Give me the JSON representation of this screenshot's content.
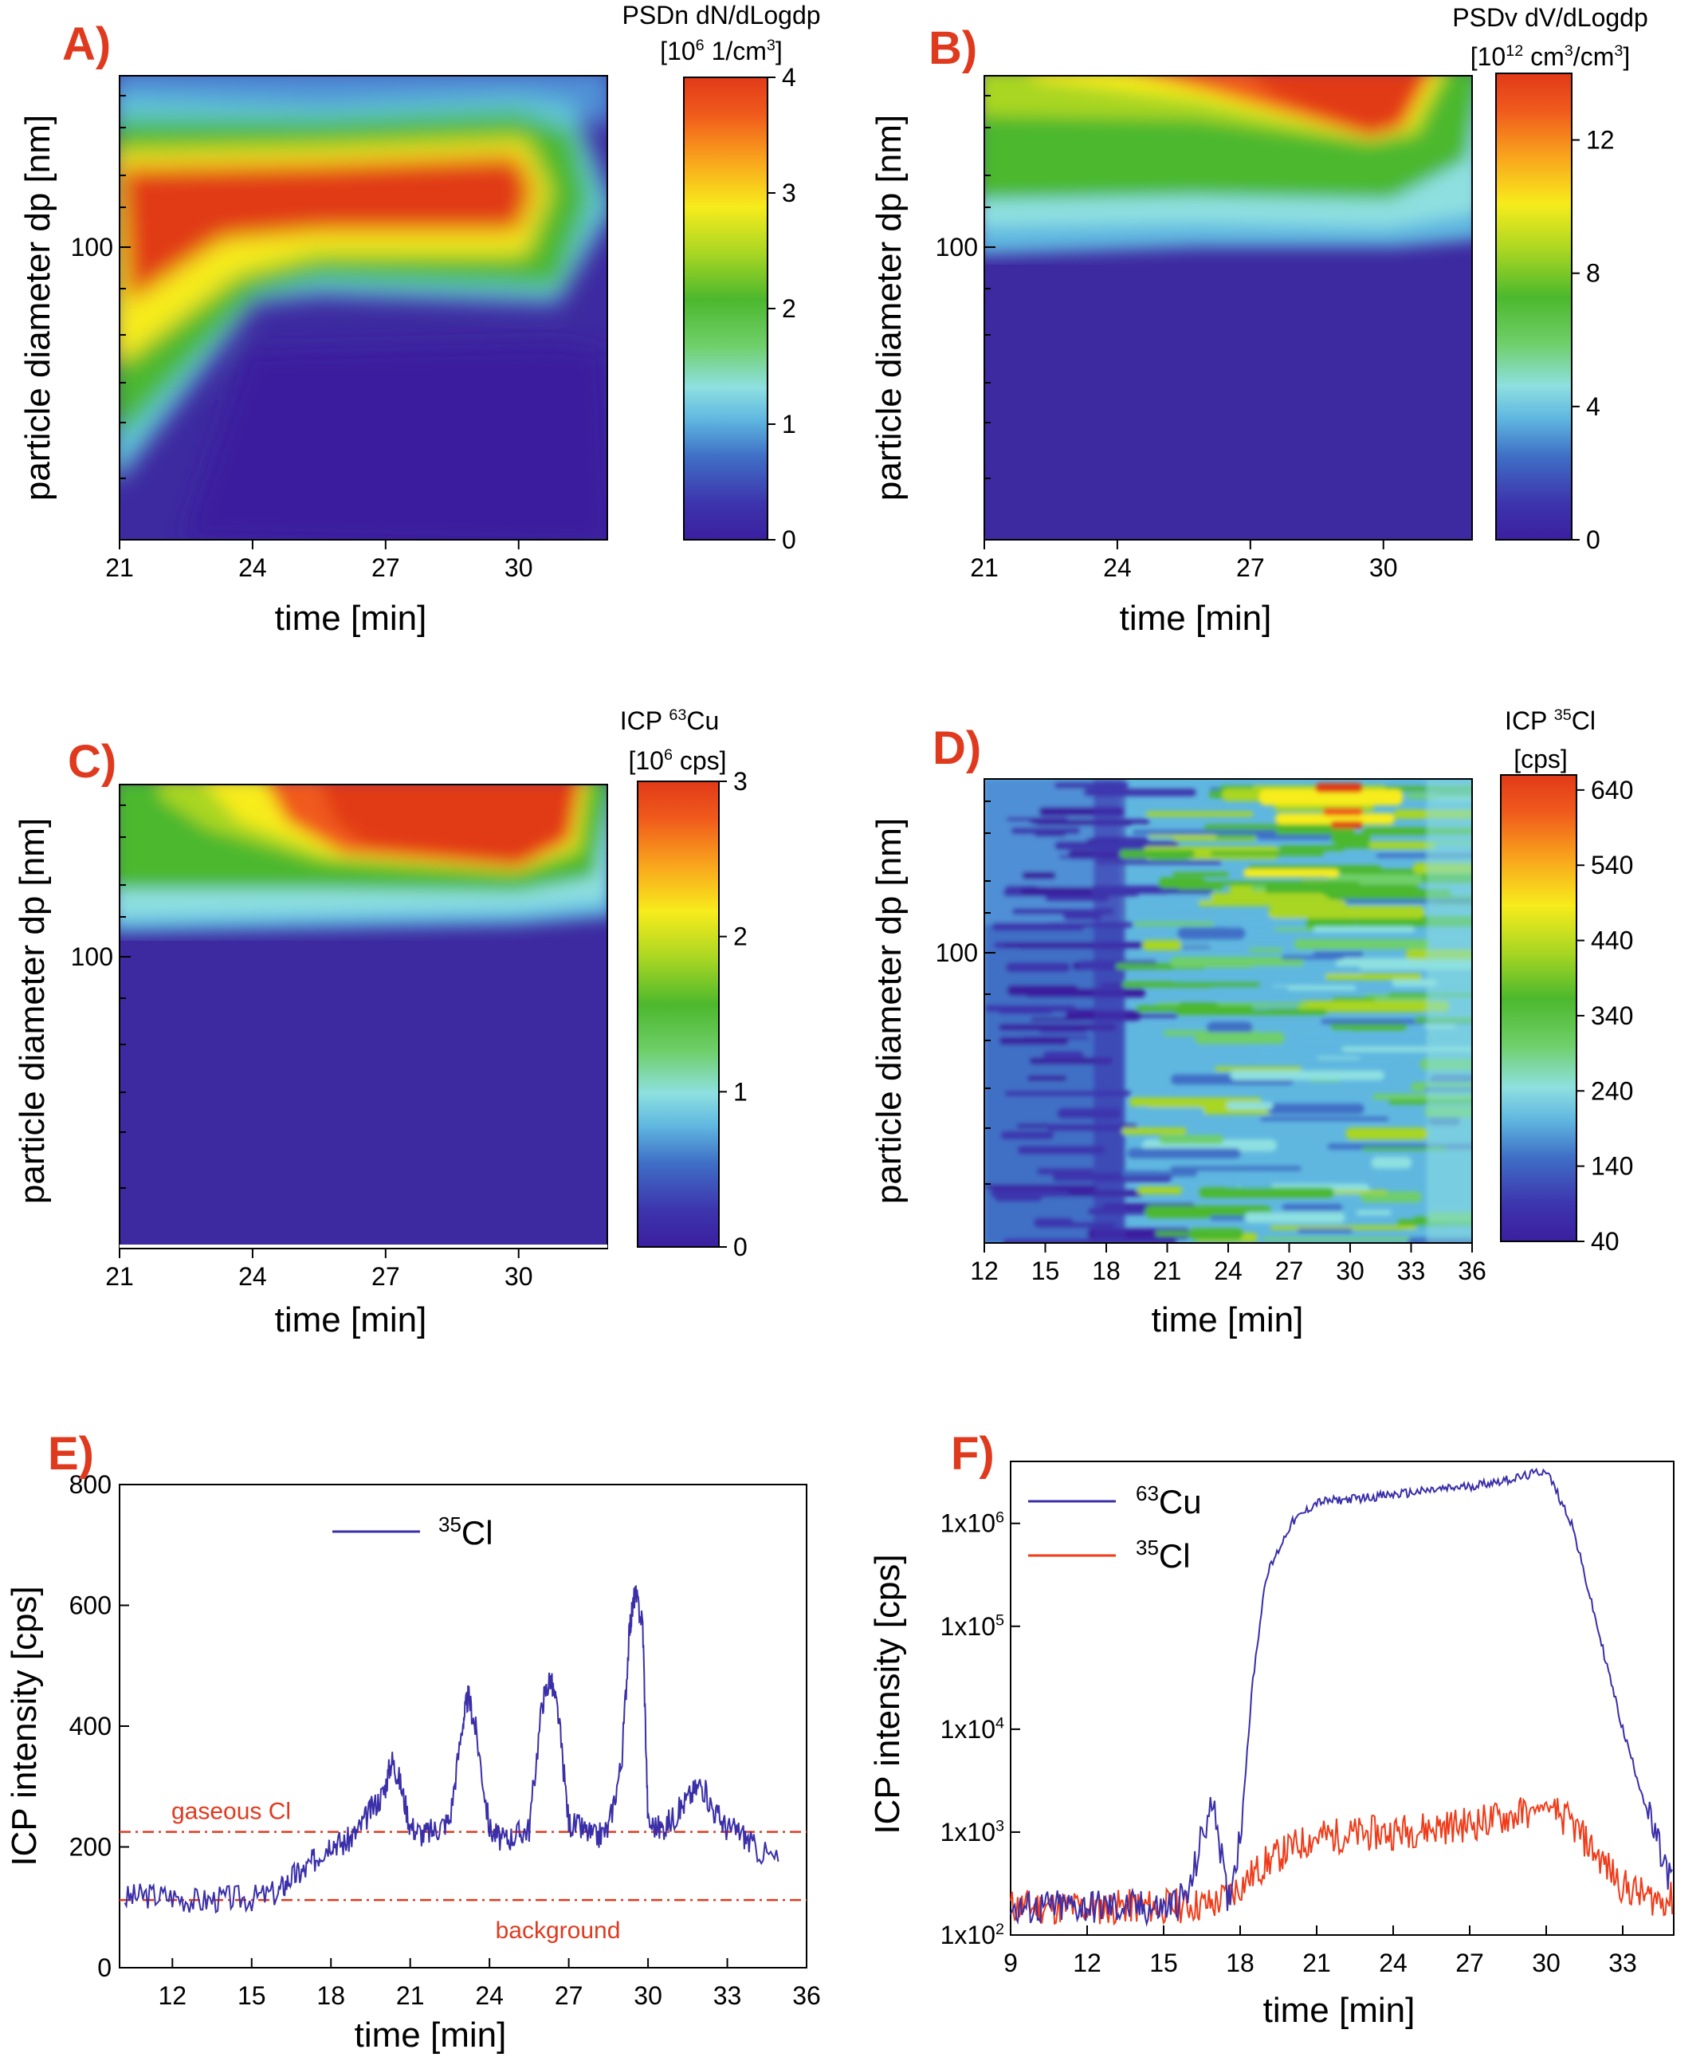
{
  "colors": {
    "panel_label": "#e03a1e",
    "colormap": [
      "#3b1f9e",
      "#3d35ad",
      "#3f6fc6",
      "#5fb7e0",
      "#8ee0e0",
      "#6fcf6a",
      "#4cb82d",
      "#a9d623",
      "#f7ec1c",
      "#f9a51d",
      "#f05a1c",
      "#e13a19"
    ],
    "cu_line": "#3a2fa8",
    "cl_line": "#f03c1a"
  },
  "chart_data": [
    {
      "panel": "A)",
      "type": "heatmap",
      "title": "",
      "xlabel": "time [min]",
      "ylabel": "particle diameter dp [nm]",
      "x_ticks": [
        "21",
        "24",
        "27",
        "30"
      ],
      "xlim": [
        21,
        32
      ],
      "y_ticks": [
        "100"
      ],
      "y_scale": "log",
      "colorbar": {
        "title_line1": "PSDn dN/dLogdp",
        "title_line2": "[10<sup>6</sup> 1/cm<sup>3</sup>]",
        "ticks": [
          "0",
          "1",
          "2",
          "3",
          "4"
        ],
        "range": [
          0,
          4
        ]
      }
    },
    {
      "panel": "B)",
      "type": "heatmap",
      "title": "",
      "xlabel": "time [min]",
      "ylabel": "particle diameter dp [nm]",
      "x_ticks": [
        "21",
        "24",
        "27",
        "30"
      ],
      "xlim": [
        21,
        32
      ],
      "y_ticks": [
        "100"
      ],
      "y_scale": "log",
      "colorbar": {
        "title_line1": "PSDv dV/dLogdp",
        "title_line2": "[10<sup>12</sup> cm<sup>3</sup>/cm<sup>3</sup>]",
        "ticks": [
          "0",
          "4",
          "8",
          "12"
        ],
        "range": [
          0,
          14
        ]
      }
    },
    {
      "panel": "C)",
      "type": "heatmap",
      "title": "",
      "xlabel": "time [min]",
      "ylabel": "particle diameter dp [nm]",
      "x_ticks": [
        "21",
        "24",
        "27",
        "30"
      ],
      "xlim": [
        21,
        32
      ],
      "y_ticks": [
        "100"
      ],
      "y_scale": "log",
      "colorbar": {
        "title_line1": "ICP <sup>63</sup>Cu",
        "title_line2": "[10<sup>6</sup> cps]",
        "ticks": [
          "0",
          "1",
          "2",
          "3"
        ],
        "range": [
          0,
          3
        ]
      }
    },
    {
      "panel": "D)",
      "type": "heatmap",
      "title": "",
      "xlabel": "time [min]",
      "ylabel": "particle diameter dp [nm]",
      "x_ticks": [
        "12",
        "15",
        "18",
        "21",
        "24",
        "27",
        "30",
        "33",
        "36"
      ],
      "xlim": [
        12,
        36
      ],
      "y_ticks": [
        "100"
      ],
      "y_scale": "log",
      "colorbar": {
        "title_line1": "ICP <sup>35</sup>Cl",
        "title_line2": "[cps]",
        "ticks": [
          "40",
          "140",
          "240",
          "340",
          "440",
          "540",
          "640"
        ],
        "range": [
          40,
          660
        ]
      }
    },
    {
      "panel": "E)",
      "type": "line",
      "title": "",
      "xlabel": "time [min]",
      "ylabel": "ICP intensity [cps]",
      "x_ticks": [
        "12",
        "15",
        "18",
        "21",
        "24",
        "27",
        "30",
        "33",
        "36"
      ],
      "xlim": [
        10,
        36
      ],
      "y_ticks": [
        "0",
        "200",
        "400",
        "600",
        "800"
      ],
      "ylim": [
        0,
        800
      ],
      "series": [
        {
          "name": "<sup>35</sup>Cl",
          "color": "#3a2fa8",
          "x": [
            10.2,
            11,
            12,
            13,
            14,
            15,
            16,
            16.5,
            17,
            17.5,
            18,
            18.5,
            19,
            19.5,
            20,
            20.3,
            20.6,
            21,
            21.5,
            22,
            22.5,
            23,
            23.2,
            23.5,
            24,
            24.5,
            25,
            25.5,
            26,
            26.3,
            26.6,
            27,
            27.5,
            28,
            28.5,
            29,
            29.3,
            29.5,
            29.8,
            30,
            30.5,
            31,
            31.5,
            32,
            32.5,
            33,
            33.5,
            34,
            35
          ],
          "y": [
            115,
            120,
            118,
            110,
            115,
            115,
            125,
            150,
            160,
            185,
            210,
            205,
            225,
            260,
            290,
            345,
            310,
            235,
            220,
            230,
            245,
            410,
            450,
            390,
            230,
            210,
            220,
            230,
            440,
            480,
            420,
            240,
            230,
            215,
            230,
            340,
            560,
            620,
            570,
            240,
            230,
            250,
            280,
            305,
            260,
            230,
            225,
            200,
            175
          ]
        }
      ],
      "hlines": [
        {
          "label": "gaseous Cl",
          "y": 225
        },
        {
          "label": "background",
          "y": 112
        }
      ]
    },
    {
      "panel": "F)",
      "type": "line",
      "title": "",
      "xlabel": "time [min]",
      "ylabel": "ICP intensity [cps]",
      "x_ticks": [
        "9",
        "12",
        "15",
        "18",
        "21",
        "24",
        "27",
        "30",
        "33"
      ],
      "xlim": [
        9,
        35
      ],
      "y_ticks": [
        "1x10<sup>2</sup>",
        "1x10<sup>3</sup>",
        "1x10<sup>4</sup>",
        "1x10<sup>5</sup>",
        "1x10<sup>6</sup>"
      ],
      "y_scale": "log",
      "ylim": [
        100,
        4000000
      ],
      "series": [
        {
          "name": "<sup>63</sup>Cu",
          "color": "#3a2fa8",
          "x": [
            9,
            12,
            15,
            16,
            16.5,
            17,
            17.5,
            18,
            18.5,
            19,
            20,
            21,
            24,
            27,
            29,
            30,
            31,
            32,
            33,
            34,
            34.6,
            35
          ],
          "y": [
            180,
            190,
            180,
            250,
            900,
            2000,
            200,
            900,
            30000,
            300000,
            1000000,
            1600000,
            1900000,
            2300000,
            2800000,
            3300000,
            1000000,
            100000,
            10000,
            1500,
            500,
            300
          ]
        },
        {
          "name": "<sup>35</sup>Cl",
          "color": "#f03c1a",
          "x": [
            9,
            12,
            15,
            17,
            18,
            19,
            20,
            21,
            24,
            27,
            29,
            30,
            31,
            32,
            33,
            34,
            35
          ],
          "y": [
            190,
            185,
            190,
            200,
            300,
            500,
            700,
            900,
            1000,
            1200,
            1500,
            1800,
            1200,
            600,
            300,
            230,
            220
          ]
        }
      ]
    }
  ]
}
